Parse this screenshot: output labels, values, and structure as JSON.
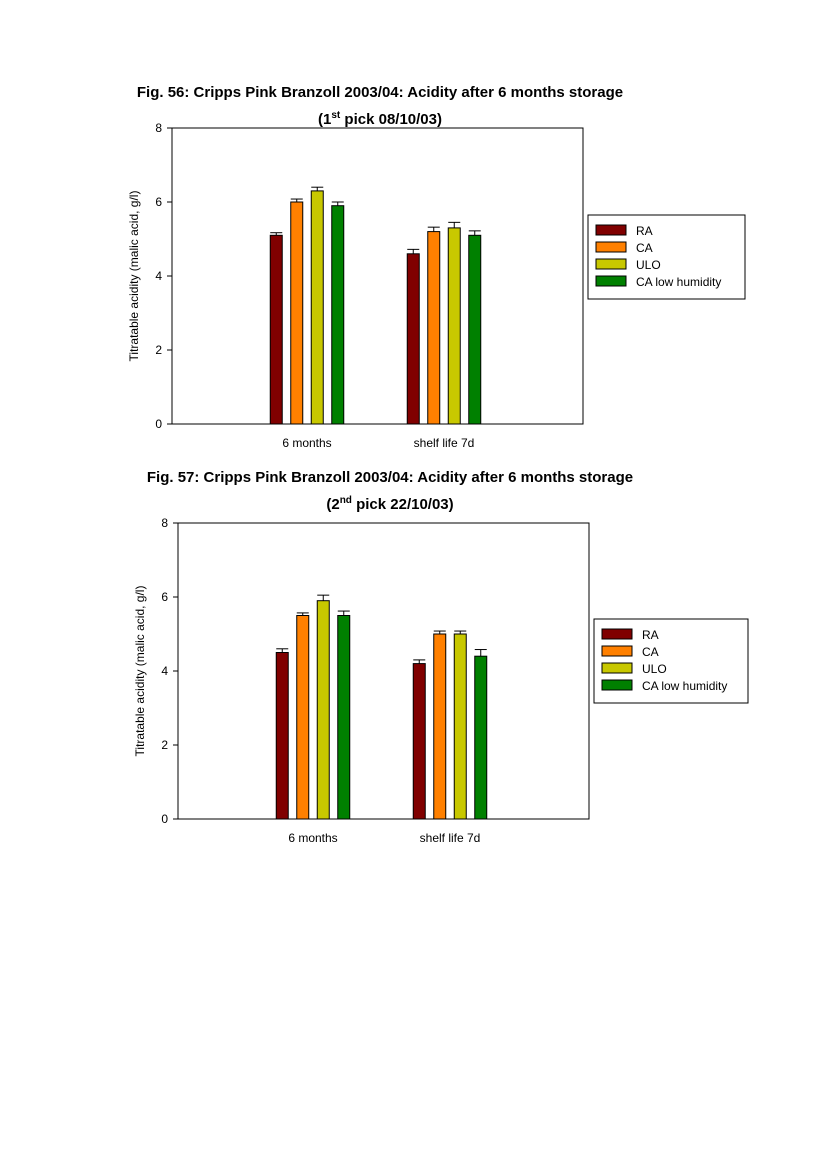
{
  "figures": [
    {
      "title_line1": "Fig. 56: Cripps Pink Branzoll 2003/04: Acidity after 6 months storage",
      "title_line2_pre": "(1",
      "title_line2_sup": "st",
      "title_line2_post": " pick 08/10/03)"
    },
    {
      "title_line1": "Fig. 57: Cripps Pink Branzoll 2003/04: Acidity after 6 months storage",
      "title_line2_pre": "(2",
      "title_line2_sup": "nd",
      "title_line2_post": " pick 22/10/03)"
    }
  ],
  "chart_data": [
    {
      "type": "bar",
      "title": "Fig. 56: Cripps Pink Branzoll 2003/04: Acidity after 6 months storage (1st pick 08/10/03)",
      "categories": [
        "6 months",
        "shelf life 7d"
      ],
      "ylabel": "Titratable acidity (malic acid, g/l)",
      "xlabel": "",
      "ylim": [
        0,
        8
      ],
      "yticks": [
        "0",
        "2",
        "4",
        "6",
        "8"
      ],
      "legend_position": "right",
      "series": [
        {
          "name": "RA",
          "color": "#800000",
          "values": [
            5.1,
            4.6
          ],
          "errors": [
            0.07,
            0.12
          ]
        },
        {
          "name": "CA",
          "color": "#ff8000",
          "values": [
            6.0,
            5.2
          ],
          "errors": [
            0.08,
            0.12
          ]
        },
        {
          "name": "ULO",
          "color": "#c8c800",
          "values": [
            6.3,
            5.3
          ],
          "errors": [
            0.1,
            0.15
          ]
        },
        {
          "name": "CA low humidity",
          "color": "#008000",
          "values": [
            5.9,
            5.1
          ],
          "errors": [
            0.1,
            0.12
          ]
        }
      ]
    },
    {
      "type": "bar",
      "title": "Fig. 57: Cripps Pink Branzoll 2003/04: Acidity after 6 months storage (2nd pick 22/10/03)",
      "categories": [
        "6 months",
        "shelf life 7d"
      ],
      "ylabel": "Titratable acidity (malic acid, g/l)",
      "xlabel": "",
      "ylim": [
        0,
        8
      ],
      "yticks": [
        "0",
        "2",
        "4",
        "6",
        "8"
      ],
      "legend_position": "right",
      "series": [
        {
          "name": "RA",
          "color": "#800000",
          "values": [
            4.5,
            4.2
          ],
          "errors": [
            0.1,
            0.1
          ]
        },
        {
          "name": "CA",
          "color": "#ff8000",
          "values": [
            5.5,
            5.0
          ],
          "errors": [
            0.07,
            0.08
          ]
        },
        {
          "name": "ULO",
          "color": "#c8c800",
          "values": [
            5.9,
            5.0
          ],
          "errors": [
            0.15,
            0.08
          ]
        },
        {
          "name": "CA low humidity",
          "color": "#008000",
          "values": [
            5.5,
            4.4
          ],
          "errors": [
            0.12,
            0.18
          ]
        }
      ]
    }
  ]
}
